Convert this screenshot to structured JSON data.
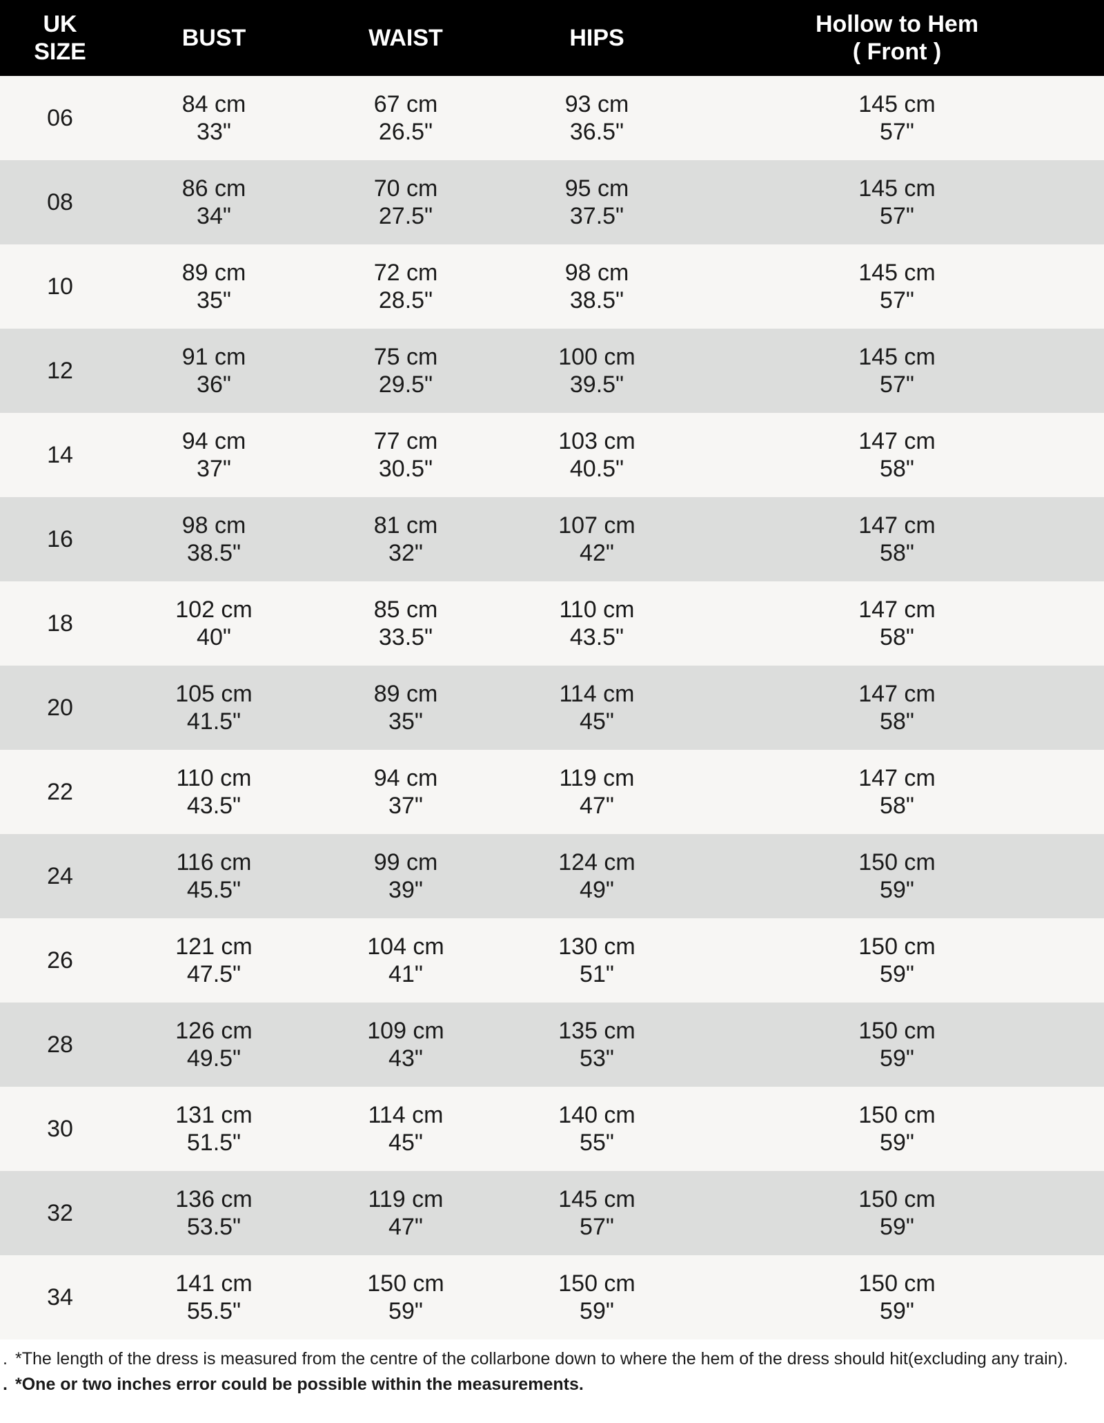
{
  "headers": [
    {
      "line1": "UK",
      "line2": "SIZE"
    },
    {
      "line1": "BUST",
      "line2": ""
    },
    {
      "line1": "WAIST",
      "line2": ""
    },
    {
      "line1": "HIPS",
      "line2": ""
    },
    {
      "line1": "Hollow to Hem",
      "line2": "( Front )"
    }
  ],
  "rows": [
    {
      "size": "06",
      "bust": [
        "84 cm",
        "33\""
      ],
      "waist": [
        "67 cm",
        "26.5\""
      ],
      "hips": [
        "93 cm",
        "36.5\""
      ],
      "hem": [
        "145 cm",
        "57\""
      ]
    },
    {
      "size": "08",
      "bust": [
        "86 cm",
        "34\""
      ],
      "waist": [
        "70 cm",
        "27.5\""
      ],
      "hips": [
        "95 cm",
        "37.5\""
      ],
      "hem": [
        "145 cm",
        "57\""
      ]
    },
    {
      "size": "10",
      "bust": [
        "89 cm",
        "35\""
      ],
      "waist": [
        "72 cm",
        "28.5\""
      ],
      "hips": [
        "98 cm",
        "38.5\""
      ],
      "hem": [
        "145 cm",
        "57\""
      ]
    },
    {
      "size": "12",
      "bust": [
        "91 cm",
        "36\""
      ],
      "waist": [
        "75 cm",
        "29.5\""
      ],
      "hips": [
        "100 cm",
        "39.5\""
      ],
      "hem": [
        "145 cm",
        "57\""
      ]
    },
    {
      "size": "14",
      "bust": [
        "94 cm",
        "37\""
      ],
      "waist": [
        "77 cm",
        "30.5\""
      ],
      "hips": [
        "103 cm",
        "40.5\""
      ],
      "hem": [
        "147 cm",
        "58\""
      ]
    },
    {
      "size": "16",
      "bust": [
        "98 cm",
        "38.5\""
      ],
      "waist": [
        "81 cm",
        "32\""
      ],
      "hips": [
        "107 cm",
        "42\""
      ],
      "hem": [
        "147 cm",
        "58\""
      ]
    },
    {
      "size": "18",
      "bust": [
        "102 cm",
        "40\""
      ],
      "waist": [
        "85 cm",
        "33.5\""
      ],
      "hips": [
        "110 cm",
        "43.5\""
      ],
      "hem": [
        "147 cm",
        "58\""
      ]
    },
    {
      "size": "20",
      "bust": [
        "105 cm",
        "41.5\""
      ],
      "waist": [
        "89 cm",
        "35\""
      ],
      "hips": [
        "114 cm",
        "45\""
      ],
      "hem": [
        "147 cm",
        "58\""
      ]
    },
    {
      "size": "22",
      "bust": [
        "110 cm",
        "43.5\""
      ],
      "waist": [
        "94 cm",
        "37\""
      ],
      "hips": [
        "119 cm",
        "47\""
      ],
      "hem": [
        "147 cm",
        "58\""
      ]
    },
    {
      "size": "24",
      "bust": [
        "116 cm",
        "45.5\""
      ],
      "waist": [
        "99 cm",
        "39\""
      ],
      "hips": [
        "124 cm",
        "49\""
      ],
      "hem": [
        "150 cm",
        "59\""
      ]
    },
    {
      "size": "26",
      "bust": [
        "121 cm",
        "47.5\""
      ],
      "waist": [
        "104 cm",
        "41\""
      ],
      "hips": [
        "130 cm",
        "51\""
      ],
      "hem": [
        "150 cm",
        "59\""
      ]
    },
    {
      "size": "28",
      "bust": [
        "126 cm",
        "49.5\""
      ],
      "waist": [
        "109 cm",
        "43\""
      ],
      "hips": [
        "135 cm",
        "53\""
      ],
      "hem": [
        "150 cm",
        "59\""
      ]
    },
    {
      "size": "30",
      "bust": [
        "131 cm",
        "51.5\""
      ],
      "waist": [
        "114 cm",
        "45\""
      ],
      "hips": [
        "140 cm",
        "55\""
      ],
      "hem": [
        "150 cm",
        "59\""
      ]
    },
    {
      "size": "32",
      "bust": [
        "136 cm",
        "53.5\""
      ],
      "waist": [
        "119 cm",
        "47\""
      ],
      "hips": [
        "145 cm",
        "57\""
      ],
      "hem": [
        "150 cm",
        "59\""
      ]
    },
    {
      "size": "34",
      "bust": [
        "141 cm",
        "55.5\""
      ],
      "waist": [
        "150 cm",
        "59\""
      ],
      "hips": [
        "150 cm",
        "59\""
      ],
      "hem": [
        "150 cm",
        "59\""
      ]
    }
  ],
  "notes": [
    {
      "bullet": ".",
      "text": "*The length of the dress is measured from the centre of the collarbone down to where the hem of the dress should hit(excluding any train).",
      "bold": false
    },
    {
      "bullet": ".",
      "text": "*One or two inches error could be possible within the measurements.",
      "bold": true
    }
  ],
  "colors": {
    "header_bg": "#000000",
    "row_light": "#f7f6f4",
    "row_dark": "#dcdddc"
  }
}
